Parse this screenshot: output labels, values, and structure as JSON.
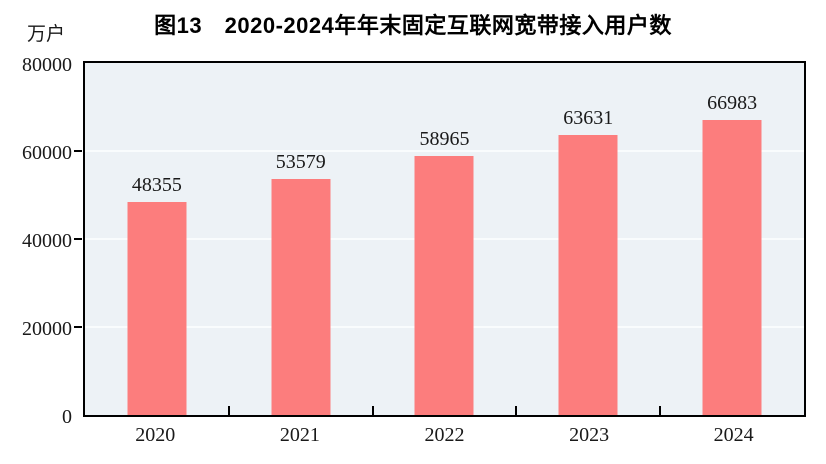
{
  "title": "图13　2020-2024年年末固定互联网宽带接入用户数",
  "unit_label": "万户",
  "colors": {
    "bar": "#fc7d7d",
    "plot_background": "#edf2f6",
    "gridline": "#f9fcfd",
    "axis": "#000000",
    "text": "#1a1a1a"
  },
  "chart_data": {
    "type": "bar",
    "title": "图13　2020-2024年年末固定互联网宽带接入用户数",
    "categories": [
      "2020",
      "2021",
      "2022",
      "2023",
      "2024"
    ],
    "values": [
      48355,
      53579,
      58965,
      63631,
      66983
    ],
    "xlabel": "",
    "ylabel": "万户",
    "ylim": [
      0,
      80000
    ],
    "yticks": [
      0,
      20000,
      40000,
      60000,
      80000
    ],
    "grid": "horizontal",
    "data_labels": true,
    "legend": "none"
  }
}
